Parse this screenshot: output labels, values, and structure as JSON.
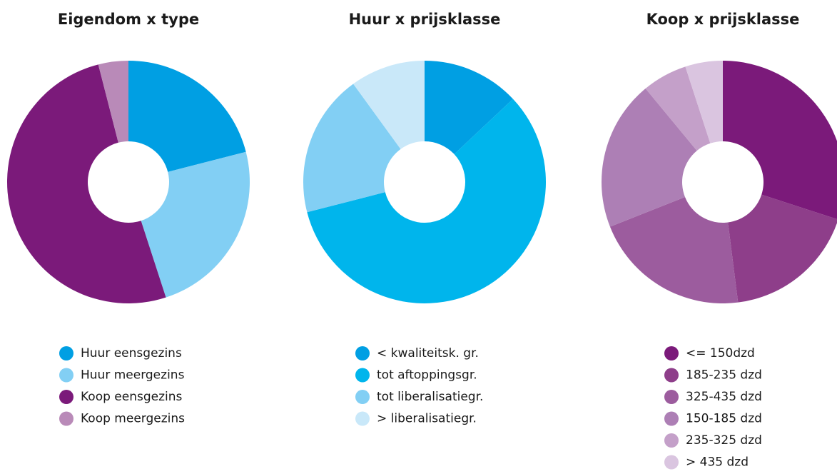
{
  "chart_data": [
    {
      "type": "donut",
      "title": "Eigendom x type",
      "categories": [
        "Huur eensgezins",
        "Huur meergezins",
        "Koop eensgezins",
        "Koop meergezins"
      ],
      "values": [
        21,
        24,
        51,
        4
      ],
      "colors": [
        "#009fe3",
        "#82cff4",
        "#7b1a7a",
        "#b98ab8"
      ]
    },
    {
      "type": "donut",
      "title": "Huur x prijsklasse",
      "categories": [
        "< kwaliteitsk. gr.",
        "tot aftoppingsgr.",
        "tot liberalisatiegr.",
        "> liberalisatiegr."
      ],
      "values": [
        13,
        58,
        19,
        10
      ],
      "colors": [
        "#009fe3",
        "#00b5ec",
        "#82cff4",
        "#c9e8f9"
      ]
    },
    {
      "type": "donut",
      "title": "Koop x prijsklasse",
      "categories": [
        "<= 150dzd",
        "185-235 dzd",
        "325-435 dzd",
        "150-185 dzd",
        "235-325 dzd",
        "> 435 dzd"
      ],
      "values": [
        30,
        18,
        21,
        20,
        6,
        5
      ],
      "colors": [
        "#7b1a7a",
        "#8e3e8a",
        "#9c5c9e",
        "#ad7fb5",
        "#c4a0c9",
        "#dac5e0"
      ]
    }
  ]
}
